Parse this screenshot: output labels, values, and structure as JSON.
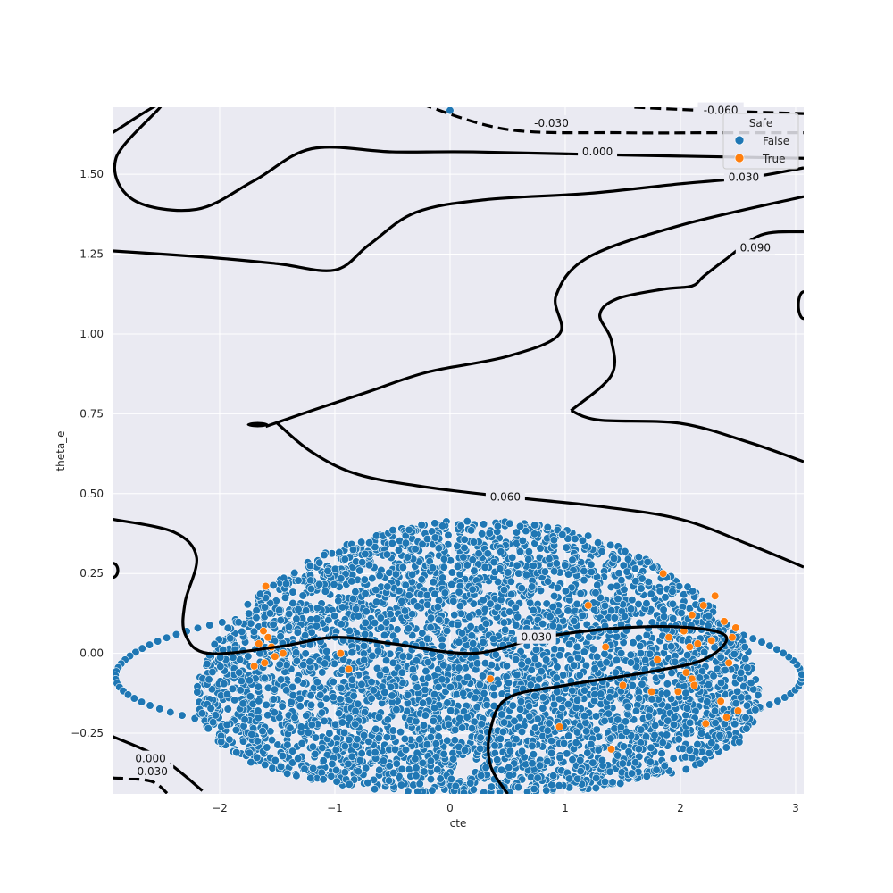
{
  "chart_data": {
    "type": "scatter",
    "title": "",
    "xlabel": "cte",
    "ylabel": "theta_e",
    "xlim": [
      -2.93,
      3.07
    ],
    "ylim": [
      -0.44,
      1.71
    ],
    "x_ticks": [
      -2,
      -1,
      0,
      1,
      2,
      3
    ],
    "x_tick_labels": [
      "−2",
      "−1",
      "0",
      "1",
      "2",
      "3"
    ],
    "y_ticks": [
      -0.25,
      0.0,
      0.25,
      0.5,
      0.75,
      1.0,
      1.25,
      1.5
    ],
    "y_tick_labels": [
      "−0.25",
      "0.00",
      "0.25",
      "0.50",
      "0.75",
      "1.00",
      "1.25",
      "1.50"
    ],
    "grid": true,
    "background": "#eaeaf2",
    "legend": {
      "title": "Safe",
      "placement": "top-right",
      "entries": [
        {
          "label": "False",
          "color": "#1f77b4"
        },
        {
          "label": "True",
          "color": "#ff7f0e"
        }
      ]
    },
    "series": [
      {
        "name": "False",
        "color": "#1f77b4",
        "description_points": "dense elliptical cloud centered near cte 0.3, theta_e 0.0",
        "cloud": {
          "center": [
            0.3,
            0.0
          ],
          "x_range": [
            -2.2,
            2.7
          ],
          "y_range": [
            -0.44,
            0.42
          ]
        },
        "outer_ring": {
          "center": [
            0.0,
            0.0
          ],
          "x_range": [
            -2.9,
            3.05
          ],
          "y_range": [
            -0.28,
            0.16
          ]
        },
        "extra_points": [
          [
            0.0,
            1.7
          ]
        ]
      },
      {
        "name": "True",
        "color": "#ff7f0e",
        "points": [
          [
            -1.6,
            0.21
          ],
          [
            -1.62,
            0.07
          ],
          [
            -1.58,
            0.05
          ],
          [
            -1.66,
            0.03
          ],
          [
            -1.55,
            0.02
          ],
          [
            -1.52,
            -0.01
          ],
          [
            -1.7,
            -0.04
          ],
          [
            -1.45,
            0.0
          ],
          [
            -1.61,
            -0.03
          ],
          [
            -0.95,
            0.0
          ],
          [
            -0.88,
            -0.05
          ],
          [
            1.35,
            0.02
          ],
          [
            1.2,
            0.15
          ],
          [
            1.5,
            -0.1
          ],
          [
            1.75,
            -0.12
          ],
          [
            1.8,
            -0.02
          ],
          [
            1.9,
            0.05
          ],
          [
            1.98,
            -0.12
          ],
          [
            2.05,
            -0.06
          ],
          [
            2.08,
            0.02
          ],
          [
            2.1,
            -0.08
          ],
          [
            2.12,
            -0.1
          ],
          [
            2.03,
            0.07
          ],
          [
            2.15,
            0.03
          ],
          [
            2.1,
            0.12
          ],
          [
            2.2,
            0.15
          ],
          [
            2.3,
            0.18
          ],
          [
            2.27,
            0.04
          ],
          [
            2.35,
            -0.15
          ],
          [
            2.4,
            -0.2
          ],
          [
            2.45,
            0.05
          ],
          [
            2.48,
            0.08
          ],
          [
            2.42,
            -0.03
          ],
          [
            2.38,
            0.1
          ],
          [
            2.5,
            -0.18
          ],
          [
            1.85,
            0.25
          ],
          [
            2.22,
            -0.22
          ],
          [
            0.35,
            -0.08
          ],
          [
            0.95,
            -0.23
          ],
          [
            1.4,
            -0.3
          ]
        ]
      }
    ],
    "contour_lines": [
      {
        "label": "0.000",
        "points": [
          [
            -2.93,
            1.63
          ],
          [
            -2.5,
            1.72
          ],
          [
            -2.9,
            1.55
          ],
          [
            -2.75,
            1.42
          ],
          [
            -2.2,
            1.39
          ],
          [
            -1.7,
            1.48
          ],
          [
            -1.2,
            1.58
          ],
          [
            -0.5,
            1.57
          ],
          [
            0.2,
            1.57
          ],
          [
            1.5,
            1.56
          ],
          [
            3.07,
            1.55
          ]
        ]
      },
      {
        "label": "0.030",
        "points": [
          [
            -2.93,
            1.26
          ],
          [
            -2.1,
            1.24
          ],
          [
            -1.5,
            1.22
          ],
          [
            -1.0,
            1.2
          ],
          [
            -0.7,
            1.28
          ],
          [
            -0.3,
            1.38
          ],
          [
            0.3,
            1.42
          ],
          [
            1.2,
            1.44
          ],
          [
            2.0,
            1.47
          ],
          [
            2.6,
            1.49
          ],
          [
            3.07,
            1.52
          ]
        ]
      },
      {
        "label": "0.060",
        "points": [
          [
            -1.6,
            0.71
          ],
          [
            -1.2,
            0.76
          ],
          [
            -0.7,
            0.82
          ],
          [
            -0.2,
            0.88
          ],
          [
            0.5,
            0.93
          ],
          [
            0.95,
            1.0
          ],
          [
            0.92,
            1.12
          ],
          [
            1.2,
            1.24
          ],
          [
            2.0,
            1.34
          ],
          [
            3.07,
            1.43
          ]
        ]
      },
      {
        "label": "0.060",
        "points": [
          [
            -1.5,
            0.72
          ],
          [
            -1.2,
            0.63
          ],
          [
            -0.8,
            0.56
          ],
          [
            -0.2,
            0.52
          ],
          [
            0.5,
            0.49
          ],
          [
            1.3,
            0.46
          ],
          [
            2.0,
            0.42
          ],
          [
            2.6,
            0.34
          ],
          [
            3.07,
            0.27
          ]
        ]
      },
      {
        "label": "0.090",
        "points": [
          [
            1.05,
            0.76
          ],
          [
            1.3,
            0.73
          ],
          [
            2.0,
            0.72
          ],
          [
            2.6,
            0.66
          ],
          [
            3.07,
            0.6
          ]
        ]
      },
      {
        "label": "0.090",
        "points": [
          [
            1.05,
            0.76
          ],
          [
            1.4,
            0.87
          ],
          [
            1.4,
            0.98
          ],
          [
            1.3,
            1.06
          ],
          [
            1.45,
            1.11
          ],
          [
            1.85,
            1.14
          ],
          [
            2.1,
            1.15
          ],
          [
            2.2,
            1.18
          ],
          [
            2.38,
            1.23
          ],
          [
            2.7,
            1.31
          ],
          [
            3.07,
            1.32
          ]
        ]
      },
      {
        "label": "0.030",
        "points": [
          [
            -2.93,
            0.42
          ],
          [
            -2.4,
            0.38
          ],
          [
            -2.2,
            0.3
          ],
          [
            -2.3,
            0.16
          ],
          [
            -2.3,
            0.06
          ],
          [
            -2.1,
            0.0
          ],
          [
            -1.5,
            0.02
          ],
          [
            -1.0,
            0.05
          ],
          [
            -0.5,
            0.03
          ],
          [
            0.2,
            0.0
          ],
          [
            0.8,
            0.05
          ],
          [
            1.5,
            0.08
          ],
          [
            2.1,
            0.08
          ],
          [
            2.4,
            0.05
          ],
          [
            2.2,
            -0.02
          ],
          [
            1.7,
            -0.06
          ],
          [
            1.0,
            -0.1
          ],
          [
            0.5,
            -0.14
          ],
          [
            0.35,
            -0.24
          ],
          [
            0.35,
            -0.35
          ],
          [
            0.5,
            -0.44
          ]
        ]
      },
      {
        "label": "0.000",
        "points": [
          [
            -2.93,
            -0.26
          ],
          [
            -2.5,
            -0.33
          ],
          [
            -2.15,
            -0.43
          ]
        ]
      }
    ],
    "dashed_contour_lines": [
      {
        "label": "-0.030",
        "points": [
          [
            -0.25,
            1.72
          ],
          [
            0.5,
            1.64
          ],
          [
            1.5,
            1.63
          ],
          [
            2.3,
            1.63
          ],
          [
            3.07,
            1.63
          ]
        ]
      },
      {
        "label": "-0.060",
        "points": [
          [
            1.6,
            1.71
          ],
          [
            2.2,
            1.7
          ],
          [
            3.07,
            1.69
          ]
        ]
      },
      {
        "label": "-0.030",
        "points": [
          [
            -2.93,
            -0.39
          ],
          [
            -2.6,
            -0.4
          ],
          [
            -2.45,
            -0.44
          ]
        ]
      }
    ],
    "contour_labels": [
      {
        "text": "-0.060",
        "x": 2.35,
        "y": 1.7
      },
      {
        "text": "-0.030",
        "x": 0.88,
        "y": 1.66
      },
      {
        "text": "0.000",
        "x": 1.28,
        "y": 1.57
      },
      {
        "text": "0.030",
        "x": 2.55,
        "y": 1.49
      },
      {
        "text": "0.090",
        "x": 2.65,
        "y": 1.27
      },
      {
        "text": "0.060",
        "x": 0.48,
        "y": 0.49
      },
      {
        "text": "0.030",
        "x": 0.75,
        "y": 0.05
      },
      {
        "text": "0.000",
        "x": -2.6,
        "y": -0.33
      },
      {
        "text": "-0.030",
        "x": -2.6,
        "y": -0.37
      }
    ]
  }
}
